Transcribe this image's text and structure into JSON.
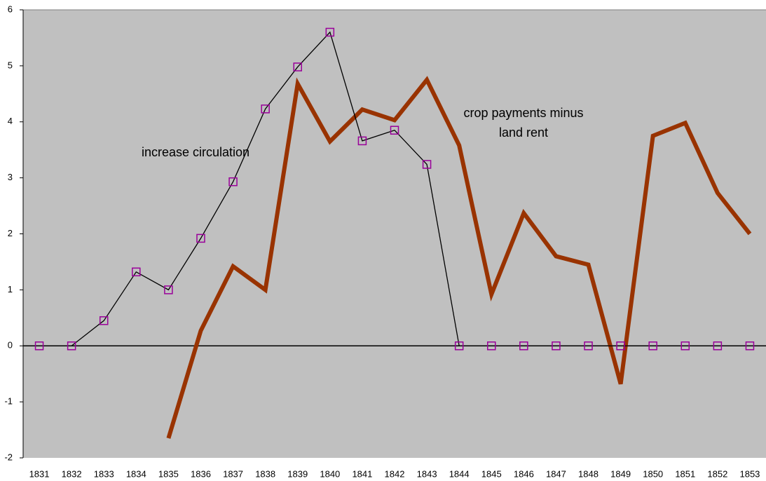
{
  "chart_data": {
    "type": "line",
    "categories": [
      "1831",
      "1832",
      "1833",
      "1834",
      "1835",
      "1836",
      "1837",
      "1838",
      "1839",
      "1840",
      "1841",
      "1842",
      "1843",
      "1844",
      "1845",
      "1846",
      "1847",
      "1848",
      "1849",
      "1850",
      "1851",
      "1852",
      "1853"
    ],
    "series": [
      {
        "name": "increase circulation",
        "color": "#000000",
        "marker_color": "#990099",
        "marker": "square",
        "values": [
          0,
          0,
          0.45,
          1.32,
          1.0,
          1.92,
          2.93,
          4.23,
          4.98,
          5.6,
          3.66,
          3.85,
          3.24,
          0,
          0,
          0,
          0,
          0,
          0,
          0,
          0,
          0,
          0
        ]
      },
      {
        "name": "crop payments minus land rent",
        "color": "#993300",
        "values": [
          null,
          null,
          null,
          null,
          -1.65,
          0.27,
          1.42,
          1.0,
          4.68,
          3.65,
          4.22,
          4.03,
          4.75,
          3.58,
          0.92,
          2.37,
          1.6,
          1.45,
          -0.68,
          3.75,
          3.98,
          2.73,
          2.0
        ]
      }
    ],
    "ylim": [
      -2,
      6
    ],
    "yticks": [
      -2,
      -1,
      0,
      1,
      2,
      3,
      4,
      5,
      6
    ],
    "background": "#c0c0c0"
  }
}
